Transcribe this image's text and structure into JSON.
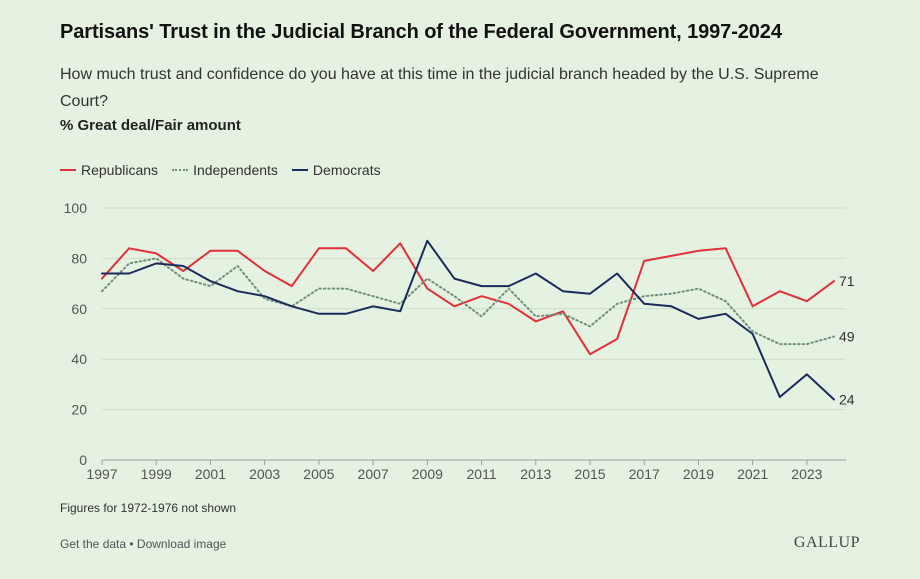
{
  "header": {
    "title": "Partisans' Trust in the Judicial Branch of the Federal Government, 1997-2024",
    "subtitle": "How much trust and confidence do you have at this time in the judicial branch headed by the U.S. Supreme Court?",
    "measure": "% Great deal/Fair amount"
  },
  "chart_data": {
    "type": "line",
    "x": [
      1997,
      1998,
      1999,
      2000,
      2001,
      2002,
      2003,
      2004,
      2005,
      2006,
      2007,
      2008,
      2009,
      2010,
      2011,
      2012,
      2013,
      2014,
      2015,
      2016,
      2017,
      2018,
      2019,
      2020,
      2021,
      2022,
      2023,
      2024
    ],
    "xticks": [
      1997,
      1999,
      2001,
      2003,
      2005,
      2007,
      2009,
      2011,
      2013,
      2015,
      2017,
      2019,
      2021,
      2023
    ],
    "yticks": [
      0,
      20,
      40,
      60,
      80,
      100
    ],
    "ylim": [
      0,
      100
    ],
    "grid": true,
    "legend_position": "top-left",
    "series": [
      {
        "name": "Republicans",
        "color": "#e0303a",
        "style": "solid",
        "end_label": "71",
        "values": [
          72,
          84,
          82,
          75,
          83,
          83,
          75,
          69,
          84,
          84,
          75,
          86,
          68,
          61,
          65,
          62,
          55,
          59,
          42,
          48,
          79,
          81,
          83,
          84,
          61,
          67,
          63,
          71
        ]
      },
      {
        "name": "Independents",
        "color": "#6f8f7c",
        "style": "dotted",
        "end_label": "49",
        "values": [
          67,
          78,
          80,
          72,
          69,
          77,
          64,
          61,
          68,
          68,
          65,
          62,
          72,
          65,
          57,
          68,
          57,
          58,
          53,
          62,
          65,
          66,
          68,
          63,
          51,
          46,
          46,
          49
        ]
      },
      {
        "name": "Democrats",
        "color": "#1b2b5c",
        "style": "solid",
        "end_label": "24",
        "values": [
          74,
          74,
          78,
          77,
          71,
          67,
          65,
          61,
          58,
          58,
          61,
          59,
          87,
          72,
          69,
          69,
          74,
          67,
          66,
          74,
          62,
          61,
          56,
          58,
          50,
          25,
          34,
          24
        ]
      }
    ]
  },
  "footer": {
    "note": "Figures for 1972-1976 not shown",
    "get_data": "Get the data",
    "separator": " • ",
    "download": "Download image",
    "brand": "GALLUP"
  }
}
